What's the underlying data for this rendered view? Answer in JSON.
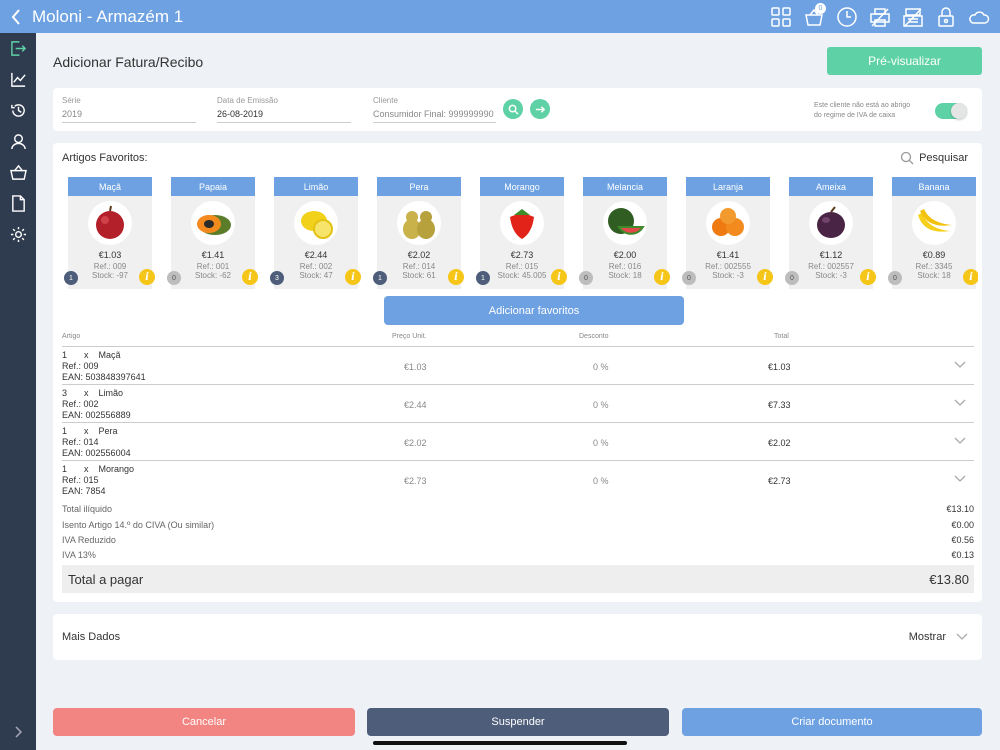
{
  "app": {
    "title": "Moloni - Armazém 1",
    "cart_count": "0"
  },
  "colors": {
    "accent": "#6da1e2",
    "green": "#5fd1a6",
    "sidebar": "#2f3b4f",
    "cancel": "#f28481",
    "suspend": "#4d5d7a",
    "info": "#f5c518"
  },
  "top_icons": [
    "grid-icon",
    "cart-icon",
    "clock-icon",
    "printer-icon",
    "cash-register-icon",
    "lock-icon",
    "cloud-icon"
  ],
  "sidebar_icons": [
    "exit-icon",
    "chart-icon",
    "history-icon",
    "user-icon",
    "basket-icon",
    "document-icon",
    "gear-icon"
  ],
  "page": {
    "title": "Adicionar Fatura/Recibo",
    "preview_label": "Pré-visualizar"
  },
  "doc": {
    "serie_label": "Série",
    "serie_value": "2019",
    "date_label": "Data de Emissão",
    "date_value": "26-08-2019",
    "client_label": "Cliente",
    "client_placeholder": "Consumidor Final: 999999990",
    "iva_note_line1": "Este cliente não está ao abrigo",
    "iva_note_line2": "do regime de IVA de caixa",
    "iva_toggle_on": true
  },
  "favorites": {
    "title": "Artigos Favoritos:",
    "search_label": "Pesquisar",
    "add_label": "Adicionar favoritos",
    "items": [
      {
        "name": "Maçã",
        "price": "€1.03",
        "ref": "Ref.: 009",
        "stock": "Stock: -97",
        "qty": "1",
        "fruit": "apple"
      },
      {
        "name": "Papaia",
        "price": "€1.41",
        "ref": "Ref.: 001",
        "stock": "Stock: -62",
        "qty": "0",
        "fruit": "papaya"
      },
      {
        "name": "Limão",
        "price": "€2.44",
        "ref": "Ref.: 002",
        "stock": "Stock: 47",
        "qty": "3",
        "fruit": "lemon"
      },
      {
        "name": "Pera",
        "price": "€2.02",
        "ref": "Ref.: 014",
        "stock": "Stock: 61",
        "qty": "1",
        "fruit": "pear"
      },
      {
        "name": "Morango",
        "price": "€2.73",
        "ref": "Ref.: 015",
        "stock": "Stock: 45.005",
        "qty": "1",
        "fruit": "strawberry"
      },
      {
        "name": "Melancia",
        "price": "€2.00",
        "ref": "Ref.: 016",
        "stock": "Stock: 18",
        "qty": "0",
        "fruit": "watermelon"
      },
      {
        "name": "Laranja",
        "price": "€1.41",
        "ref": "Ref.: 002555",
        "stock": "Stock: -3",
        "qty": "0",
        "fruit": "orange"
      },
      {
        "name": "Ameixa",
        "price": "€1.12",
        "ref": "Ref.: 002557",
        "stock": "Stock: -3",
        "qty": "0",
        "fruit": "plum"
      },
      {
        "name": "Banana",
        "price": "€0.89",
        "ref": "Ref.: 3345",
        "stock": "Stock: 18",
        "qty": "0",
        "fruit": "banana"
      }
    ]
  },
  "table": {
    "headers": {
      "artigo": "Artigo",
      "preco": "Preço Unit.",
      "desconto": "Desconto",
      "total": "Total"
    },
    "rows": [
      {
        "qty": "1",
        "x": "x",
        "name": "Maçã",
        "ref_label": "Ref.:",
        "ref": "009",
        "ean_label": "EAN:",
        "ean": "503848397641",
        "price": "€1.03",
        "discount": "0 %",
        "total": "€1.03"
      },
      {
        "qty": "3",
        "x": "x",
        "name": "Limão",
        "ref_label": "Ref.:",
        "ref": "002",
        "ean_label": "EAN:",
        "ean": "002556889",
        "price": "€2.44",
        "discount": "0 %",
        "total": "€7.33"
      },
      {
        "qty": "1",
        "x": "x",
        "name": "Pera",
        "ref_label": "Ref.:",
        "ref": "014",
        "ean_label": "EAN:",
        "ean": "002556004",
        "price": "€2.02",
        "discount": "0 %",
        "total": "€2.02"
      },
      {
        "qty": "1",
        "x": "x",
        "name": "Morango",
        "ref_label": "Ref.:",
        "ref": "015",
        "ean_label": "EAN:",
        "ean": "7854",
        "price": "€2.73",
        "discount": "0 %",
        "total": "€2.73"
      }
    ]
  },
  "summary": [
    {
      "label": "Total ilíquido",
      "value": "€13.10"
    },
    {
      "label": "Isento Artigo 14.º do CIVA (Ou similar)",
      "value": "€0.00"
    },
    {
      "label": "IVA Reduzido",
      "value": "€0.56"
    },
    {
      "label": "IVA 13%",
      "value": "€0.13"
    }
  ],
  "grand_total": {
    "label": "Total a pagar",
    "value": "€13.80"
  },
  "more": {
    "label": "Mais Dados",
    "show_label": "Mostrar"
  },
  "actions": {
    "cancel": "Cancelar",
    "suspend": "Suspender",
    "create": "Criar documento"
  }
}
